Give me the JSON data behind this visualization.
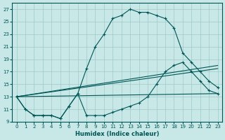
{
  "title": "",
  "xlabel": "Humidex (Indice chaleur)",
  "ylabel": "",
  "bg_color": "#c8e8e8",
  "grid_color": "#a0c8c8",
  "line_color": "#005555",
  "xlim": [
    -0.5,
    23.5
  ],
  "ylim": [
    9,
    28
  ],
  "xticks": [
    0,
    1,
    2,
    3,
    4,
    5,
    6,
    7,
    8,
    9,
    10,
    11,
    12,
    13,
    14,
    15,
    16,
    17,
    18,
    19,
    20,
    21,
    22,
    23
  ],
  "yticks": [
    9,
    11,
    13,
    15,
    17,
    19,
    21,
    23,
    25,
    27
  ],
  "curve1_x": [
    0,
    1,
    2,
    3,
    4,
    5,
    6,
    7,
    8,
    9,
    10,
    11,
    12,
    13,
    14,
    15,
    16,
    17,
    18,
    19,
    20,
    21,
    22,
    23
  ],
  "curve1_y": [
    13,
    11,
    10,
    10,
    10,
    9.5,
    11.5,
    13.5,
    17.5,
    21,
    23,
    25.5,
    26,
    27,
    26.5,
    26.5,
    26,
    25.5,
    24,
    20,
    18.5,
    17,
    15.5,
    14.5
  ],
  "curve2_x": [
    0,
    1,
    2,
    3,
    4,
    5,
    6,
    7,
    8,
    9,
    10,
    11,
    12,
    13,
    14,
    15,
    16,
    17,
    18,
    19,
    20,
    21,
    22,
    23
  ],
  "curve2_y": [
    13,
    11,
    10,
    10,
    10,
    9.5,
    11.5,
    13.5,
    10,
    10,
    10,
    10.5,
    11,
    11.5,
    12,
    13,
    15,
    17,
    18,
    18.5,
    17,
    15.5,
    14,
    13.5
  ],
  "line1_x": [
    0,
    23
  ],
  "line1_y": [
    13,
    18.0
  ],
  "line2_x": [
    0,
    23
  ],
  "line2_y": [
    13,
    17.5
  ],
  "line3_x": [
    0,
    23
  ],
  "line3_y": [
    13,
    13.5
  ]
}
